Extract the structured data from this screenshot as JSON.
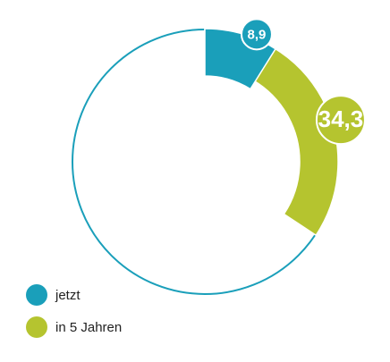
{
  "chart_data": {
    "type": "donut",
    "categories": [
      "jetzt",
      "in 5 Jahren"
    ],
    "values": [
      8.9,
      34.3
    ],
    "value_labels": [
      "8,9",
      "34,3"
    ],
    "colors": [
      "#1a9fba",
      "#b5c42f"
    ]
  }
}
